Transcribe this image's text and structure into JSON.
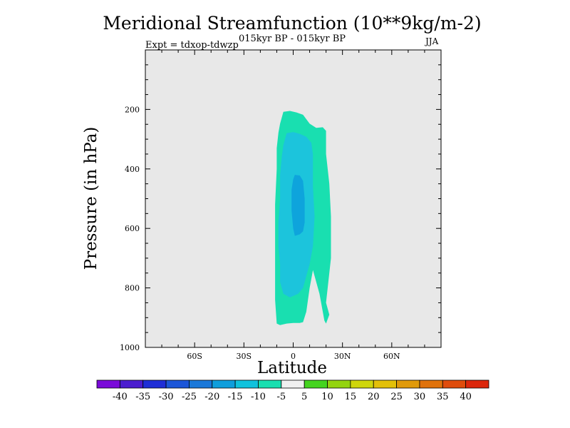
{
  "chart_data": {
    "type": "heatmap",
    "subtype": "filled-contour",
    "title": "Meridional Streamfunction (10**9kg/m-2)",
    "subtitle": "015kyr BP - 015kyr BP",
    "left_annotation": "Expt = tdxop-tdwzp",
    "right_annotation": "JJA",
    "xlabel": "Latitude",
    "ylabel": "Pressure (in hPa)",
    "xlim": [
      -90,
      90
    ],
    "ylim": [
      1000,
      0
    ],
    "x_ticks": [
      {
        "value": -60,
        "label": "60S"
      },
      {
        "value": -30,
        "label": "30S"
      },
      {
        "value": 0,
        "label": "0"
      },
      {
        "value": 30,
        "label": "30N"
      },
      {
        "value": 60,
        "label": "60N"
      }
    ],
    "y_ticks": [
      {
        "value": 200,
        "label": "200"
      },
      {
        "value": 400,
        "label": "400"
      },
      {
        "value": 600,
        "label": "600"
      },
      {
        "value": 800,
        "label": "800"
      },
      {
        "value": 1000,
        "label": "1000"
      }
    ],
    "background_color": "#e8e8e8",
    "contour_regions": [
      {
        "level": "-10 to -5",
        "color": "#19dfb0",
        "outline": [
          [
            -6,
            208
          ],
          [
            -2,
            205
          ],
          [
            2,
            210
          ],
          [
            6,
            218
          ],
          [
            10,
            248
          ],
          [
            14,
            262
          ],
          [
            18,
            260
          ],
          [
            20,
            272
          ],
          [
            20,
            350
          ],
          [
            22,
            450
          ],
          [
            23,
            560
          ],
          [
            23,
            700
          ],
          [
            21,
            800
          ],
          [
            20,
            850
          ],
          [
            22,
            890
          ],
          [
            20,
            920
          ],
          [
            19,
            910
          ],
          [
            16,
            820
          ],
          [
            13,
            760
          ],
          [
            12,
            740
          ],
          [
            10,
            800
          ],
          [
            8,
            880
          ],
          [
            6,
            915
          ],
          [
            4,
            918
          ],
          [
            0,
            918
          ],
          [
            -4,
            920
          ],
          [
            -8,
            925
          ],
          [
            -10,
            920
          ],
          [
            -11,
            840
          ],
          [
            -11,
            760
          ],
          [
            -11,
            640
          ],
          [
            -11,
            520
          ],
          [
            -10,
            400
          ],
          [
            -10,
            330
          ],
          [
            -9,
            278
          ],
          [
            -8,
            248
          ]
        ]
      },
      {
        "level": "-15 to -10",
        "color": "#1cc4dc",
        "outline": [
          [
            -4,
            280
          ],
          [
            0,
            276
          ],
          [
            4,
            282
          ],
          [
            8,
            292
          ],
          [
            11,
            312
          ],
          [
            12,
            350
          ],
          [
            12,
            460
          ],
          [
            13,
            560
          ],
          [
            12,
            660
          ],
          [
            10,
            720
          ],
          [
            8,
            760
          ],
          [
            6,
            800
          ],
          [
            3,
            820
          ],
          [
            -2,
            832
          ],
          [
            -6,
            820
          ],
          [
            -8,
            780
          ],
          [
            -8,
            720
          ],
          [
            -9,
            660
          ],
          [
            -9,
            580
          ],
          [
            -8,
            500
          ],
          [
            -8,
            420
          ],
          [
            -7,
            360
          ],
          [
            -6,
            320
          ]
        ]
      },
      {
        "level": "-20 to -15",
        "color": "#0ea4dc",
        "outline": [
          [
            1,
            420
          ],
          [
            4,
            422
          ],
          [
            6,
            440
          ],
          [
            7,
            500
          ],
          [
            7,
            580
          ],
          [
            6,
            610
          ],
          [
            4,
            620
          ],
          [
            1,
            625
          ],
          [
            0,
            600
          ],
          [
            -1,
            540
          ],
          [
            -1,
            470
          ],
          [
            0,
            435
          ]
        ]
      }
    ],
    "colorbar": {
      "labels": [
        "-40",
        "-35",
        "-30",
        "-25",
        "-20",
        "-15",
        "-10",
        "-5",
        "5",
        "10",
        "15",
        "20",
        "25",
        "30",
        "35",
        "40"
      ],
      "colors": [
        "#7a0ad9",
        "#4b1dcf",
        "#1f2ed6",
        "#1c56d8",
        "#1a78d9",
        "#0f9edc",
        "#10c2dd",
        "#19dfb0",
        "#f0f0f0",
        "#44d41f",
        "#93d40f",
        "#cfd60c",
        "#e3c009",
        "#e09a0a",
        "#e0720b",
        "#df4c0c",
        "#dc270c"
      ]
    }
  }
}
